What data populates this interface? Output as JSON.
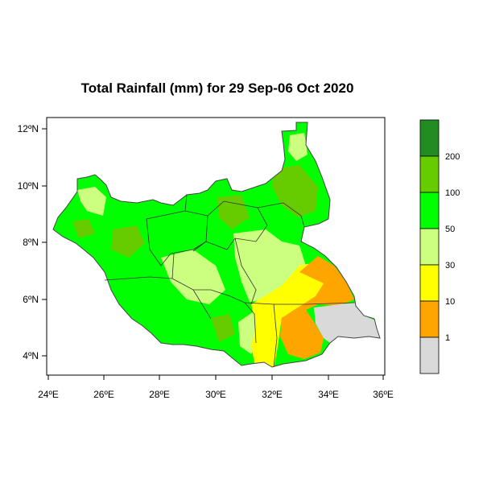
{
  "title": "Total Rainfall (mm) for 29 Sep-06 Oct 2020",
  "colors": {
    "frame": "#000000",
    "country_outline": "#333333",
    "nodata": "#d9d9d9",
    "1": "#ffa500",
    "10": "#ffff00",
    "30": "#ccff80",
    "50": "#00ff00",
    "100": "#66cc00",
    "200": "#2e8b22",
    "max": "#228b22"
  },
  "map": {
    "x_ticks": [
      "24ºE",
      "26ºE",
      "28ºE",
      "30ºE",
      "32ºE",
      "34ºE",
      "36ºE"
    ],
    "y_ticks": [
      "12ºN",
      "10ºN",
      "8ºN",
      "6ºN",
      "4ºN"
    ],
    "lon_range": [
      24,
      36
    ],
    "lat_range": [
      3.4,
      12.5
    ]
  },
  "legend": {
    "labels": [
      "200",
      "100",
      "50",
      "30",
      "10",
      "1"
    ],
    "bins": [
      "<1",
      "1-10",
      "10-30",
      "30-50",
      "50-100",
      "100-200",
      ">200"
    ]
  }
}
